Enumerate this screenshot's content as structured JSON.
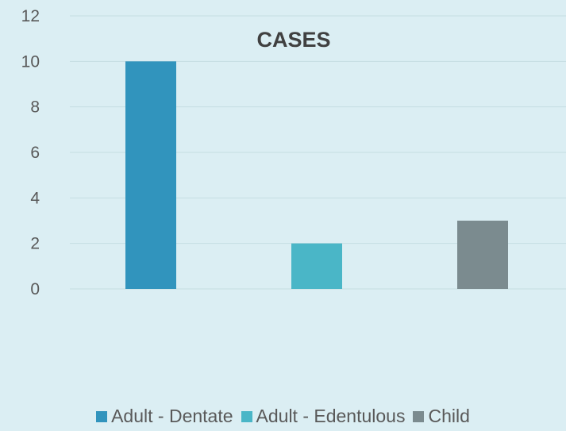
{
  "chart_data": {
    "type": "bar",
    "title": "CASES",
    "categories": [
      "Adult - Dentate",
      "Adult - Edentulous",
      "Child"
    ],
    "values": [
      10,
      2,
      3
    ],
    "colors": [
      "#3194bd",
      "#4ab6c7",
      "#7b8b8f"
    ],
    "ylim": [
      0,
      12
    ],
    "yticks": [
      "0",
      "2",
      "4",
      "6",
      "8",
      "10",
      "12"
    ],
    "grid": true,
    "legend_position": "bottom"
  }
}
